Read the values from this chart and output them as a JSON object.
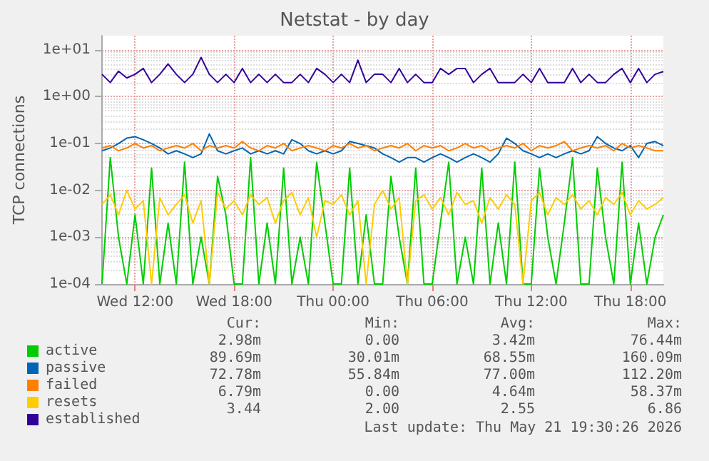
{
  "chart_data": {
    "type": "line",
    "title": "Netstat - by day",
    "ylabel": "TCP connections",
    "log": "y",
    "grid": true,
    "legend": "bottom",
    "marker": "none",
    "line_style": "solid",
    "x": [
      "2026-05-20T10:00",
      "2026-05-20T10:30",
      "2026-05-20T11:00",
      "2026-05-20T11:30",
      "2026-05-20T12:00",
      "2026-05-20T12:30",
      "2026-05-20T13:00",
      "2026-05-20T13:30",
      "2026-05-20T14:00",
      "2026-05-20T14:30",
      "2026-05-20T15:00",
      "2026-05-20T15:30",
      "2026-05-20T16:00",
      "2026-05-20T16:30",
      "2026-05-20T17:00",
      "2026-05-20T17:30",
      "2026-05-20T18:00",
      "2026-05-20T18:30",
      "2026-05-20T19:00",
      "2026-05-20T19:30",
      "2026-05-20T20:00",
      "2026-05-20T20:30",
      "2026-05-20T21:00",
      "2026-05-20T21:30",
      "2026-05-20T22:00",
      "2026-05-20T22:30",
      "2026-05-20T23:00",
      "2026-05-20T23:30",
      "2026-05-21T00:00",
      "2026-05-21T00:30",
      "2026-05-21T01:00",
      "2026-05-21T01:30",
      "2026-05-21T02:00",
      "2026-05-21T02:30",
      "2026-05-21T03:00",
      "2026-05-21T03:30",
      "2026-05-21T04:00",
      "2026-05-21T04:30",
      "2026-05-21T05:00",
      "2026-05-21T05:30",
      "2026-05-21T06:00",
      "2026-05-21T06:30",
      "2026-05-21T07:00",
      "2026-05-21T07:30",
      "2026-05-21T08:00",
      "2026-05-21T08:30",
      "2026-05-21T09:00",
      "2026-05-21T09:30",
      "2026-05-21T10:00",
      "2026-05-21T10:30",
      "2026-05-21T11:00",
      "2026-05-21T11:30",
      "2026-05-21T12:00",
      "2026-05-21T12:30",
      "2026-05-21T13:00",
      "2026-05-21T13:30",
      "2026-05-21T14:00",
      "2026-05-21T14:30",
      "2026-05-21T15:00",
      "2026-05-21T15:30",
      "2026-05-21T16:00",
      "2026-05-21T16:30",
      "2026-05-21T17:00",
      "2026-05-21T17:30",
      "2026-05-21T18:00",
      "2026-05-21T18:30",
      "2026-05-21T19:00",
      "2026-05-21T19:30",
      "2026-05-21T20:00"
    ],
    "xlim": [
      "2026-05-20T10:00",
      "2026-05-21T20:00"
    ],
    "xticks": [
      {
        "value": "2026-05-20T12:00",
        "label": "Wed 12:00"
      },
      {
        "value": "2026-05-20T18:00",
        "label": "Wed 18:00"
      },
      {
        "value": "2026-05-21T00:00",
        "label": "Thu 00:00"
      },
      {
        "value": "2026-05-21T06:00",
        "label": "Thu 06:00"
      },
      {
        "value": "2026-05-21T12:00",
        "label": "Thu 12:00"
      },
      {
        "value": "2026-05-21T18:00",
        "label": "Thu 18:00"
      }
    ],
    "ylim": [
      0.0001,
      20
    ],
    "yticks": [
      {
        "value": 0.0001,
        "label": "1e-04"
      },
      {
        "value": 0.001,
        "label": "1e-03"
      },
      {
        "value": 0.01,
        "label": "1e-02"
      },
      {
        "value": 0.1,
        "label": "1e-01"
      },
      {
        "value": 1,
        "label": "1e+00"
      },
      {
        "value": 10,
        "label": "1e+01"
      }
    ],
    "series": [
      {
        "name": "active",
        "color": "#00cc00",
        "values": [
          0.0001,
          0.05,
          0.001,
          0.0001,
          0.003,
          0.0001,
          0.03,
          0.0001,
          0.002,
          0.0001,
          0.04,
          0.0001,
          0.001,
          0.0001,
          0.02,
          0.003,
          0.0001,
          0.0001,
          0.05,
          0.0001,
          0.002,
          0.0001,
          0.03,
          0.0001,
          0.001,
          0.0001,
          0.04,
          0.002,
          0.0001,
          0.0001,
          0.03,
          0.0001,
          0.003,
          0.0001,
          0.0001,
          0.02,
          0.001,
          0.0001,
          0.03,
          0.0001,
          0.0001,
          0.002,
          0.04,
          0.0001,
          0.001,
          0.0001,
          0.03,
          0.0001,
          0.002,
          0.0001,
          0.04,
          0.0001,
          0.0001,
          0.03,
          0.001,
          0.0001,
          0.002,
          0.05,
          0.0001,
          0.0001,
          0.03,
          0.001,
          0.0001,
          0.04,
          0.0001,
          0.002,
          0.0001,
          0.001,
          0.003
        ]
      },
      {
        "name": "passive",
        "color": "#0066b3",
        "values": [
          0.07,
          0.08,
          0.1,
          0.13,
          0.14,
          0.12,
          0.1,
          0.08,
          0.06,
          0.07,
          0.06,
          0.05,
          0.06,
          0.16,
          0.07,
          0.06,
          0.07,
          0.08,
          0.06,
          0.07,
          0.06,
          0.07,
          0.06,
          0.12,
          0.1,
          0.07,
          0.06,
          0.07,
          0.06,
          0.07,
          0.11,
          0.1,
          0.09,
          0.08,
          0.06,
          0.05,
          0.04,
          0.05,
          0.05,
          0.04,
          0.05,
          0.06,
          0.05,
          0.04,
          0.05,
          0.06,
          0.05,
          0.04,
          0.06,
          0.13,
          0.1,
          0.07,
          0.06,
          0.05,
          0.06,
          0.05,
          0.06,
          0.07,
          0.06,
          0.07,
          0.14,
          0.1,
          0.08,
          0.07,
          0.09,
          0.05,
          0.1,
          0.11,
          0.09
        ]
      },
      {
        "name": "failed",
        "color": "#ff8000",
        "values": [
          0.08,
          0.09,
          0.07,
          0.08,
          0.1,
          0.08,
          0.09,
          0.07,
          0.08,
          0.09,
          0.08,
          0.1,
          0.07,
          0.09,
          0.08,
          0.09,
          0.08,
          0.11,
          0.08,
          0.07,
          0.09,
          0.08,
          0.1,
          0.07,
          0.08,
          0.09,
          0.08,
          0.07,
          0.09,
          0.08,
          0.1,
          0.08,
          0.09,
          0.07,
          0.08,
          0.09,
          0.08,
          0.1,
          0.07,
          0.09,
          0.08,
          0.09,
          0.07,
          0.08,
          0.1,
          0.08,
          0.09,
          0.07,
          0.08,
          0.09,
          0.08,
          0.1,
          0.07,
          0.09,
          0.08,
          0.09,
          0.11,
          0.07,
          0.08,
          0.09,
          0.08,
          0.09,
          0.07,
          0.1,
          0.08,
          0.09,
          0.08,
          0.07,
          0.07
        ]
      },
      {
        "name": "resets",
        "color": "#ffcc00",
        "values": [
          0.005,
          0.008,
          0.003,
          0.01,
          0.004,
          0.006,
          0.0001,
          0.007,
          0.003,
          0.005,
          0.008,
          0.002,
          0.006,
          0.0001,
          0.009,
          0.004,
          0.006,
          0.003,
          0.008,
          0.005,
          0.007,
          0.002,
          0.006,
          0.009,
          0.003,
          0.007,
          0.001,
          0.006,
          0.005,
          0.008,
          0.003,
          0.006,
          0.0001,
          0.005,
          0.01,
          0.004,
          0.007,
          0.0001,
          0.006,
          0.008,
          0.004,
          0.007,
          0.003,
          0.009,
          0.005,
          0.006,
          0.002,
          0.007,
          0.004,
          0.008,
          0.005,
          0.0001,
          0.006,
          0.009,
          0.003,
          0.007,
          0.005,
          0.008,
          0.004,
          0.006,
          0.003,
          0.007,
          0.005,
          0.009,
          0.003,
          0.006,
          0.004,
          0.005,
          0.007
        ]
      },
      {
        "name": "established",
        "color": "#330099",
        "values": [
          3,
          2,
          3.5,
          2.5,
          3,
          4,
          2,
          3,
          5,
          3,
          2,
          3,
          6.86,
          3,
          2,
          3,
          2,
          4,
          2,
          3,
          2,
          3,
          2,
          2,
          3,
          2,
          4,
          3,
          2,
          3,
          2,
          6,
          2,
          3,
          3,
          2,
          4,
          2,
          3,
          2,
          2,
          4,
          3,
          4,
          4,
          2,
          3,
          4,
          2,
          2,
          2,
          3,
          2,
          4,
          2,
          2,
          2,
          4,
          2,
          3,
          2,
          2,
          3,
          4,
          2,
          4,
          2,
          3,
          3.44
        ]
      }
    ],
    "annotations": [
      "Cur:",
      "Min:",
      "Avg:",
      "Max:",
      "2.98m",
      "0.00",
      "3.42m",
      "76.44m",
      "89.69m",
      "30.01m",
      "68.55m",
      "160.09m",
      "72.78m",
      "55.84m",
      "77.00m",
      "112.20m",
      "6.79m",
      "0.00",
      "4.64m",
      "58.37m",
      "3.44",
      "2.00",
      "2.55",
      "6.86",
      "Last update: Thu May 21 19:30:26 2026"
    ]
  }
}
